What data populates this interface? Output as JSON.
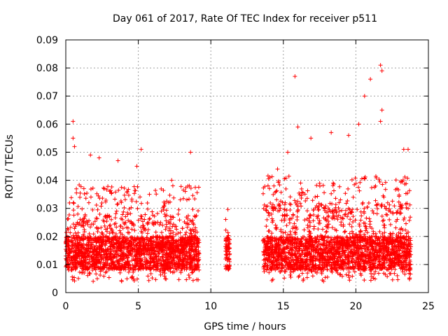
{
  "chart_data": {
    "type": "scatter",
    "title": "Day 061 of 2017, Rate Of TEC Index for receiver p511",
    "xlabel": "GPS time / hours",
    "ylabel": "ROTI / TECUs",
    "xlim": [
      0,
      25
    ],
    "ylim": [
      0,
      0.09
    ],
    "xticks": [
      0,
      5,
      10,
      15,
      20,
      25
    ],
    "xtick_labels": [
      "0",
      "5",
      "10",
      "15",
      "20",
      "25"
    ],
    "yticks": [
      0,
      0.01,
      0.02,
      0.03,
      0.04,
      0.05,
      0.06,
      0.07,
      0.08,
      0.09
    ],
    "ytick_labels": [
      "0",
      "0.01",
      "0.02",
      "0.03",
      "0.04",
      "0.05",
      "0.06",
      "0.07",
      "0.08",
      "0.09"
    ],
    "grid": true,
    "marker": "+",
    "color": "#ff0000",
    "data_segments": [
      {
        "x_start": 0.0,
        "x_end": 9.2,
        "typical_min": 0.004,
        "typical_max": 0.028
      },
      {
        "x_start": 11.0,
        "x_end": 11.3,
        "typical_min": 0.008,
        "typical_max": 0.024
      },
      {
        "x_start": 13.6,
        "x_end": 23.8,
        "typical_min": 0.004,
        "typical_max": 0.032
      }
    ],
    "notable_points": [
      {
        "x": 0.5,
        "y": 0.061
      },
      {
        "x": 0.5,
        "y": 0.055
      },
      {
        "x": 0.6,
        "y": 0.052
      },
      {
        "x": 1.7,
        "y": 0.049
      },
      {
        "x": 2.3,
        "y": 0.048
      },
      {
        "x": 3.6,
        "y": 0.047
      },
      {
        "x": 4.9,
        "y": 0.045
      },
      {
        "x": 5.2,
        "y": 0.051
      },
      {
        "x": 7.3,
        "y": 0.04
      },
      {
        "x": 8.6,
        "y": 0.05
      },
      {
        "x": 14.6,
        "y": 0.044
      },
      {
        "x": 15.3,
        "y": 0.05
      },
      {
        "x": 15.8,
        "y": 0.077
      },
      {
        "x": 16.0,
        "y": 0.059
      },
      {
        "x": 16.9,
        "y": 0.055
      },
      {
        "x": 18.3,
        "y": 0.057
      },
      {
        "x": 19.5,
        "y": 0.056
      },
      {
        "x": 20.2,
        "y": 0.06
      },
      {
        "x": 20.6,
        "y": 0.07
      },
      {
        "x": 21.0,
        "y": 0.076
      },
      {
        "x": 21.7,
        "y": 0.081
      },
      {
        "x": 21.8,
        "y": 0.079
      },
      {
        "x": 21.7,
        "y": 0.061
      },
      {
        "x": 21.8,
        "y": 0.065
      },
      {
        "x": 23.3,
        "y": 0.051
      },
      {
        "x": 23.6,
        "y": 0.051
      }
    ]
  }
}
